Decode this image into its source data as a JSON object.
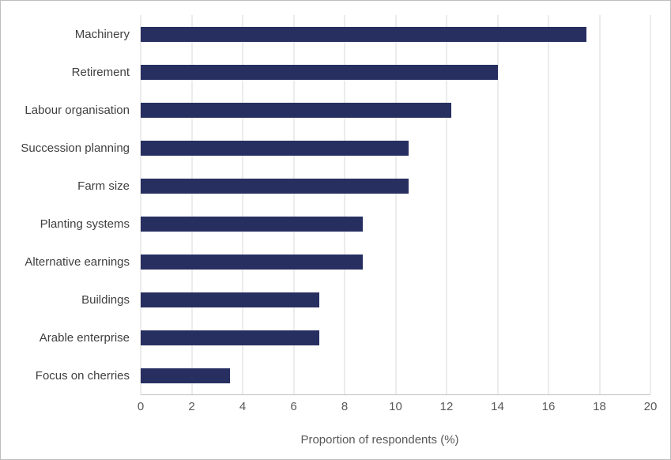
{
  "chart_data": {
    "type": "bar",
    "orientation": "horizontal",
    "title": "",
    "categories": [
      "Machinery",
      "Retirement",
      "Labour organisation",
      "Succession planning",
      "Farm size",
      "Planting systems",
      "Alternative earnings",
      "Buildings",
      "Arable enterprise",
      "Focus on cherries"
    ],
    "values": [
      17.5,
      14,
      12.2,
      10.5,
      10.5,
      8.7,
      8.7,
      7,
      7,
      3.5
    ],
    "xlabel": "Proportion of respondents (%)",
    "ylabel": "",
    "xlim": [
      0,
      20
    ],
    "xticks": [
      0,
      2,
      4,
      6,
      8,
      10,
      12,
      14,
      16,
      18,
      20
    ],
    "grid": true,
    "legend": "none",
    "colors": {
      "bar": "#272f61",
      "gridline": "#d9d9d9",
      "axis_line": "#bfbfbf",
      "tick_label": "#595959",
      "category_label": "#3f3f3f",
      "background": "#ffffff"
    }
  }
}
